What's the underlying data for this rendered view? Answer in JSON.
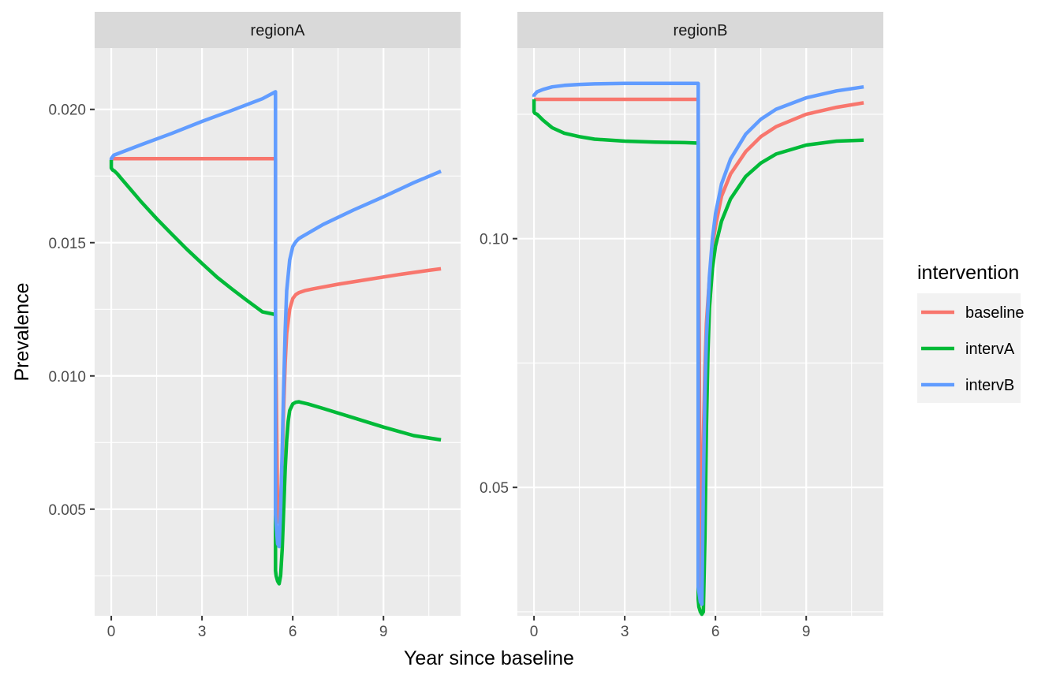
{
  "chart_data": {
    "type": "line",
    "xlabel": "Year since baseline",
    "ylabel": "Prevalence",
    "legend": {
      "title": "intervention",
      "position": "right",
      "items": [
        {
          "name": "baseline",
          "color": "#F8766D"
        },
        {
          "name": "intervA",
          "color": "#00BA38"
        },
        {
          "name": "intervB",
          "color": "#619CFF"
        }
      ]
    },
    "x_ticks": [
      0,
      3,
      6,
      9
    ],
    "xlim": [
      -0.55,
      11.55
    ],
    "panels": [
      {
        "strip": "regionA",
        "ylim": [
          0.001,
          0.0223
        ],
        "y_ticks": [
          0.005,
          0.01,
          0.015,
          0.02
        ],
        "y_tick_labels": [
          "0.005",
          "0.010",
          "0.015",
          "0.020"
        ],
        "series": [
          {
            "name": "baseline",
            "color": "#F8766D",
            "x": [
              0,
              5.43,
              5.43,
              5.5,
              5.55,
              5.6,
              5.65,
              5.7,
              5.75,
              5.8,
              5.9,
              6.0,
              6.1,
              6.2,
              6.4,
              6.7,
              7.5,
              8.5,
              9.5,
              10.5,
              10.9
            ],
            "y": [
              0.01815,
              0.01815,
              0.0121,
              0.0048,
              0.0045,
              0.0052,
              0.0068,
              0.0088,
              0.0105,
              0.0116,
              0.0125,
              0.0129,
              0.01305,
              0.01312,
              0.0132,
              0.01327,
              0.01344,
              0.01362,
              0.0138,
              0.01396,
              0.01402
            ]
          },
          {
            "name": "intervA",
            "color": "#00BA38",
            "x": [
              0,
              0,
              0.05,
              0.1,
              0.2,
              0.35,
              0.6,
              1,
              1.5,
              2,
              2.5,
              3,
              3.5,
              4,
              4.5,
              5,
              5.43,
              5.43,
              5.45,
              5.5,
              5.55,
              5.6,
              5.65,
              5.7,
              5.75,
              5.8,
              5.85,
              5.9,
              6.0,
              6.1,
              6.2,
              6.3,
              6.5,
              7,
              8,
              9,
              10,
              10.9
            ],
            "y": [
              0.0181,
              0.0178,
              0.01772,
              0.01769,
              0.01758,
              0.01738,
              0.01705,
              0.01652,
              0.0159,
              0.01532,
              0.01475,
              0.01422,
              0.0137,
              0.01325,
              0.01282,
              0.0124,
              0.0123,
              0.0027,
              0.0025,
              0.0023,
              0.0022,
              0.0025,
              0.0035,
              0.005,
              0.0065,
              0.0076,
              0.0083,
              0.0087,
              0.00895,
              0.00901,
              0.00903,
              0.009,
              0.00895,
              0.00878,
              0.00843,
              0.00808,
              0.00776,
              0.0076
            ]
          },
          {
            "name": "intervB",
            "color": "#619CFF",
            "x": [
              0,
              0,
              0.08,
              1,
              2,
              3,
              4,
              5,
              5.43,
              5.43,
              5.5,
              5.55,
              5.6,
              5.65,
              5.7,
              5.75,
              5.8,
              5.9,
              6.0,
              6.1,
              6.2,
              6.3,
              6.5,
              7,
              8,
              9,
              10,
              10.9
            ],
            "y": [
              0.0181,
              0.01815,
              0.01828,
              0.01868,
              0.0191,
              0.01955,
              0.01997,
              0.0204,
              0.02066,
              0.0048,
              0.0037,
              0.0036,
              0.005,
              0.0072,
              0.0096,
              0.0117,
              0.0132,
              0.01435,
              0.01485,
              0.01503,
              0.01515,
              0.01522,
              0.01535,
              0.01568,
              0.01622,
              0.01672,
              0.01725,
              0.01768
            ]
          }
        ]
      },
      {
        "strip": "regionB",
        "ylim": [
          0.0242,
          0.1383
        ],
        "y_ticks": [
          0.05,
          0.1
        ],
        "y_tick_labels": [
          "0.05",
          "0.10"
        ],
        "series": [
          {
            "name": "baseline",
            "color": "#F8766D",
            "x": [
              0,
              5.43,
              5.43,
              5.5,
              5.55,
              5.6,
              5.65,
              5.7,
              5.8,
              5.9,
              6.0,
              6.2,
              6.5,
              7,
              7.5,
              8,
              9,
              10,
              10.9
            ],
            "y": [
              0.128,
              0.128,
              0.12,
              0.03,
              0.04,
              0.06,
              0.074,
              0.083,
              0.092,
              0.0985,
              0.1025,
              0.1085,
              0.113,
              0.1175,
              0.1205,
              0.1225,
              0.125,
              0.1264,
              0.1273
            ]
          },
          {
            "name": "intervA",
            "color": "#00BA38",
            "x": [
              0,
              0,
              0.03,
              0.1,
              0.3,
              0.6,
              1,
              1.5,
              2,
              3,
              4,
              5,
              5.43,
              5.43,
              5.45,
              5.5,
              5.55,
              5.6,
              5.65,
              5.7,
              5.75,
              5.8,
              5.9,
              6.0,
              6.2,
              6.5,
              7,
              7.5,
              8,
              9,
              10,
              10.9
            ],
            "y": [
              0.128,
              0.1255,
              0.1252,
              0.125,
              0.1238,
              0.1223,
              0.1212,
              0.1205,
              0.12,
              0.1196,
              0.1194,
              0.1193,
              0.1192,
              0.0275,
              0.026,
              0.025,
              0.0245,
              0.025,
              0.04,
              0.062,
              0.077,
              0.086,
              0.094,
              0.0985,
              0.1035,
              0.108,
              0.1125,
              0.1152,
              0.117,
              0.1188,
              0.1196,
              0.1198
            ]
          },
          {
            "name": "intervB",
            "color": "#619CFF",
            "x": [
              0,
              0,
              0.1,
              0.3,
              0.6,
              1,
              1.5,
              2,
              3,
              4,
              5,
              5.43,
              5.43,
              5.5,
              5.55,
              5.6,
              5.65,
              5.7,
              5.8,
              5.9,
              6.0,
              6.2,
              6.5,
              7,
              7.5,
              8,
              9,
              10,
              10.9
            ],
            "y": [
              0.1285,
              0.1288,
              0.1295,
              0.13,
              0.1305,
              0.1308,
              0.131,
              0.1311,
              0.1312,
              0.1312,
              0.1312,
              0.1312,
              0.03,
              0.027,
              0.0265,
              0.05,
              0.069,
              0.08,
              0.0925,
              0.1,
              0.105,
              0.111,
              0.116,
              0.121,
              0.124,
              0.126,
              0.1283,
              0.1297,
              0.1305
            ]
          }
        ]
      }
    ]
  }
}
